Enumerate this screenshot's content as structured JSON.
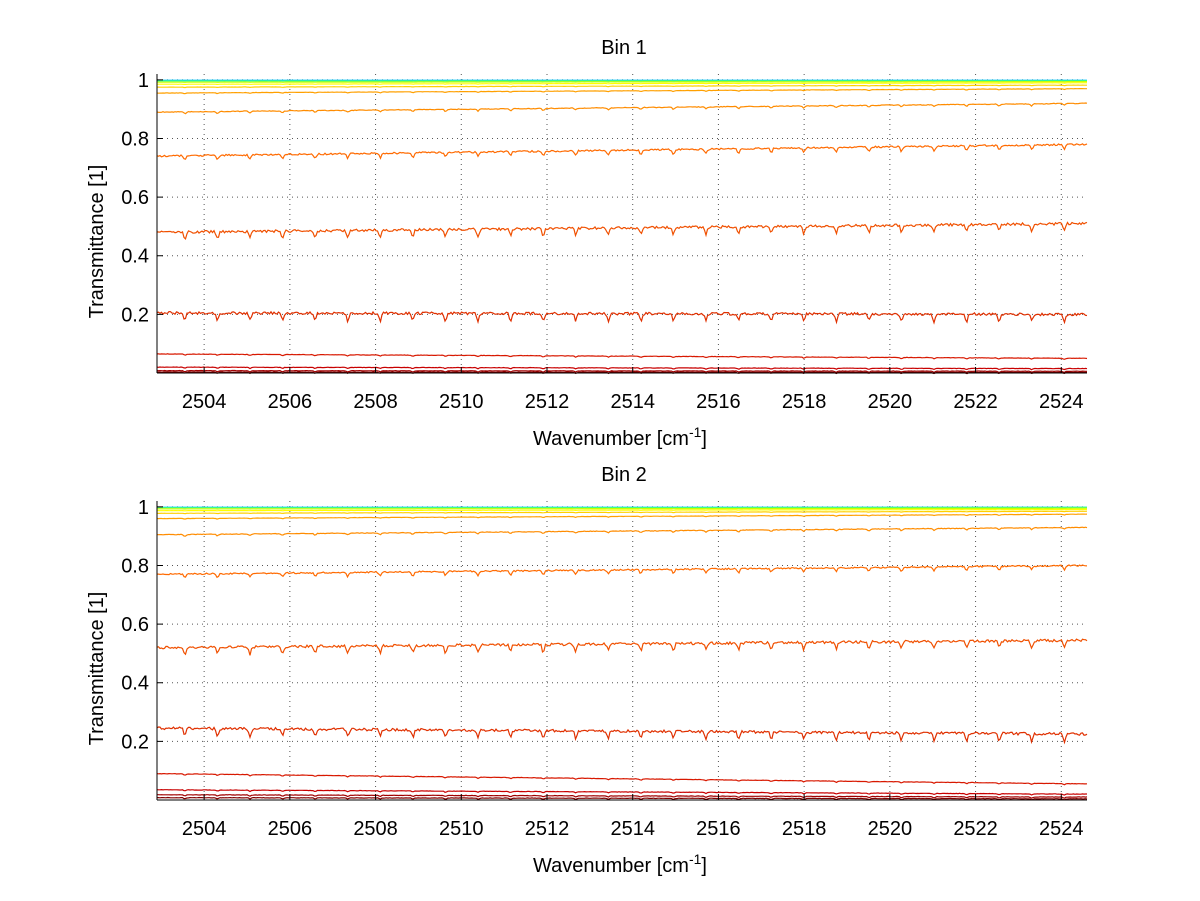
{
  "chart_data": [
    {
      "type": "line",
      "title": "Bin 1",
      "xlabel_main": "Wavenumber [cm",
      "xlabel_sup": "-1",
      "xlabel_end": "]",
      "ylabel": "Transmittance [1]",
      "xlim": [
        2502.9,
        2524.6
      ],
      "ylim": [
        0.0,
        1.02
      ],
      "xticks": [
        2504,
        2506,
        2508,
        2510,
        2512,
        2514,
        2516,
        2518,
        2520,
        2522,
        2524
      ],
      "xtick_labels": [
        "2504",
        "2506",
        "2508",
        "2510",
        "2512",
        "2514",
        "2516",
        "2518",
        "2520",
        "2522",
        "2524"
      ],
      "yticks": [
        0.2,
        0.4,
        0.6,
        0.8,
        1.0
      ],
      "ytick_labels": [
        "0.2",
        "0.4",
        "0.6",
        "0.8",
        "1"
      ],
      "grid": true,
      "series": [
        {
          "color": "#00c8ff",
          "x": [
            2502.9,
            2524.6
          ],
          "y": [
            0.999,
            0.999
          ]
        },
        {
          "color": "#40ff80",
          "x": [
            2502.9,
            2524.6
          ],
          "y": [
            0.996,
            0.997
          ]
        },
        {
          "color": "#c8ff00",
          "x": [
            2502.9,
            2524.6
          ],
          "y": [
            0.992,
            0.994
          ]
        },
        {
          "color": "#ffff00",
          "x": [
            2502.9,
            2524.6
          ],
          "y": [
            0.985,
            0.99
          ]
        },
        {
          "color": "#ffd000",
          "x": [
            2502.9,
            2524.6
          ],
          "y": [
            0.975,
            0.982
          ]
        },
        {
          "color": "#ffa000",
          "x": [
            2502.9,
            2524.6
          ],
          "y": [
            0.955,
            0.97
          ]
        },
        {
          "color": "#ff8c00",
          "x": [
            2502.9,
            2524.6
          ],
          "y": [
            0.89,
            0.92
          ]
        },
        {
          "color": "#ff6a00",
          "x": [
            2502.9,
            2524.6
          ],
          "y": [
            0.74,
            0.78
          ]
        },
        {
          "color": "#f05000",
          "x": [
            2502.9,
            2524.6
          ],
          "y": [
            0.48,
            0.51
          ]
        },
        {
          "color": "#e03000",
          "x": [
            2502.9,
            2524.6
          ],
          "y": [
            0.205,
            0.2
          ]
        },
        {
          "color": "#d81800",
          "x": [
            2502.9,
            2524.6
          ],
          "y": [
            0.065,
            0.05
          ]
        },
        {
          "color": "#c80000",
          "x": [
            2502.9,
            2524.6
          ],
          "y": [
            0.02,
            0.015
          ]
        },
        {
          "color": "#a00000",
          "x": [
            2502.9,
            2524.6
          ],
          "y": [
            0.008,
            0.006
          ]
        },
        {
          "color": "#800000",
          "x": [
            2502.9,
            2524.6
          ],
          "y": [
            0.003,
            0.002
          ]
        }
      ]
    },
    {
      "type": "line",
      "title": "Bin 2",
      "xlabel_main": "Wavenumber [cm",
      "xlabel_sup": "-1",
      "xlabel_end": "]",
      "ylabel": "Transmittance [1]",
      "xlim": [
        2502.9,
        2524.6
      ],
      "ylim": [
        0.0,
        1.02
      ],
      "xticks": [
        2504,
        2506,
        2508,
        2510,
        2512,
        2514,
        2516,
        2518,
        2520,
        2522,
        2524
      ],
      "xtick_labels": [
        "2504",
        "2506",
        "2508",
        "2510",
        "2512",
        "2514",
        "2516",
        "2518",
        "2520",
        "2522",
        "2524"
      ],
      "yticks": [
        0.2,
        0.4,
        0.6,
        0.8,
        1.0
      ],
      "ytick_labels": [
        "0.2",
        "0.4",
        "0.6",
        "0.8",
        "1"
      ],
      "grid": true,
      "series": [
        {
          "color": "#00c8ff",
          "x": [
            2502.9,
            2524.6
          ],
          "y": [
            0.999,
            0.999
          ]
        },
        {
          "color": "#40ff80",
          "x": [
            2502.9,
            2524.6
          ],
          "y": [
            0.997,
            0.998
          ]
        },
        {
          "color": "#c8ff00",
          "x": [
            2502.9,
            2524.6
          ],
          "y": [
            0.993,
            0.995
          ]
        },
        {
          "color": "#ffff00",
          "x": [
            2502.9,
            2524.6
          ],
          "y": [
            0.987,
            0.991
          ]
        },
        {
          "color": "#ffd000",
          "x": [
            2502.9,
            2524.6
          ],
          "y": [
            0.978,
            0.985
          ]
        },
        {
          "color": "#ffa000",
          "x": [
            2502.9,
            2524.6
          ],
          "y": [
            0.96,
            0.975
          ]
        },
        {
          "color": "#ff8c00",
          "x": [
            2502.9,
            2524.6
          ],
          "y": [
            0.905,
            0.93
          ]
        },
        {
          "color": "#ff6a00",
          "x": [
            2502.9,
            2524.6
          ],
          "y": [
            0.77,
            0.8
          ]
        },
        {
          "color": "#f05000",
          "x": [
            2502.9,
            2524.6
          ],
          "y": [
            0.52,
            0.545
          ]
        },
        {
          "color": "#e03000",
          "x": [
            2502.9,
            2524.6
          ],
          "y": [
            0.245,
            0.225
          ]
        },
        {
          "color": "#d81800",
          "x": [
            2502.9,
            2524.6
          ],
          "y": [
            0.09,
            0.055
          ]
        },
        {
          "color": "#c80000",
          "x": [
            2502.9,
            2524.6
          ],
          "y": [
            0.035,
            0.02
          ]
        },
        {
          "color": "#a00000",
          "x": [
            2502.9,
            2524.6
          ],
          "y": [
            0.018,
            0.01
          ]
        },
        {
          "color": "#800000",
          "x": [
            2502.9,
            2524.6
          ],
          "y": [
            0.008,
            0.004
          ]
        }
      ]
    }
  ]
}
